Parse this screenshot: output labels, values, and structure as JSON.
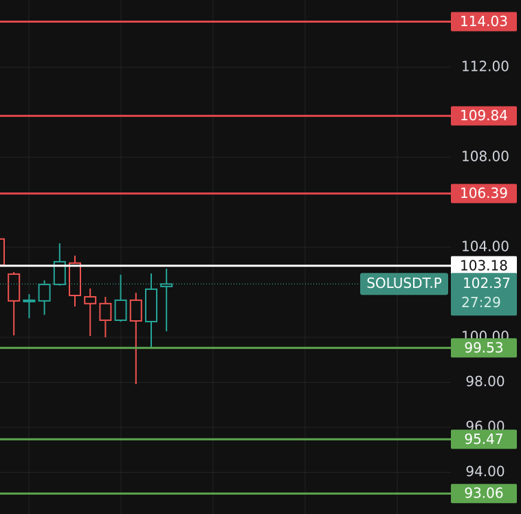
{
  "chart_data": {
    "type": "candlestick",
    "ylim": [
      92.15,
      114.99
    ],
    "yticks": [
      {
        "value": 112,
        "label": "112.00"
      },
      {
        "value": 108,
        "label": "108.00"
      },
      {
        "value": 104,
        "label": "104.00"
      },
      {
        "value": 100,
        "label": "100.00"
      },
      {
        "value": 98,
        "label": "98.00"
      },
      {
        "value": 96,
        "label": "96.00"
      },
      {
        "value": 94,
        "label": "94.00"
      }
    ],
    "grid": true,
    "categories": [
      null,
      null,
      null,
      null,
      null,
      null,
      null,
      null,
      null,
      null,
      null,
      null
    ],
    "open": [
      104.37,
      102.81,
      101.62,
      101.62,
      102.35,
      103.3,
      101.8,
      101.5,
      100.76,
      101.65,
      100.7,
      102.26
    ],
    "high": [
      104.5,
      102.9,
      101.92,
      102.53,
      104.18,
      103.63,
      102.17,
      101.8,
      102.78,
      101.98,
      102.84,
      103.05
    ],
    "low": [
      103.1,
      100.09,
      100.85,
      101.0,
      102.3,
      101.37,
      100.06,
      100.0,
      100.7,
      97.92,
      99.51,
      100.27
    ],
    "close": [
      103.21,
      101.62,
      101.65,
      102.35,
      103.36,
      101.86,
      101.5,
      100.76,
      101.65,
      100.73,
      102.14,
      102.37
    ],
    "up_color": "#26a69a",
    "down_color": "#ef5350",
    "levels": [
      {
        "value": 114.03,
        "color": "#e0474c"
      },
      {
        "value": 109.84,
        "color": "#e0474c"
      },
      {
        "value": 106.39,
        "color": "#e0474c"
      },
      {
        "value": 103.18,
        "color": "#ffffff"
      },
      {
        "value": 99.53,
        "color": "#5ea74f"
      },
      {
        "value": 95.47,
        "color": "#5ea74f"
      },
      {
        "value": 93.06,
        "color": "#5ea74f"
      }
    ],
    "last_price": {
      "value": 102.37,
      "symbol": "SOLUSDT.P",
      "countdown": "27:29",
      "color": "#3b8e7e"
    }
  }
}
